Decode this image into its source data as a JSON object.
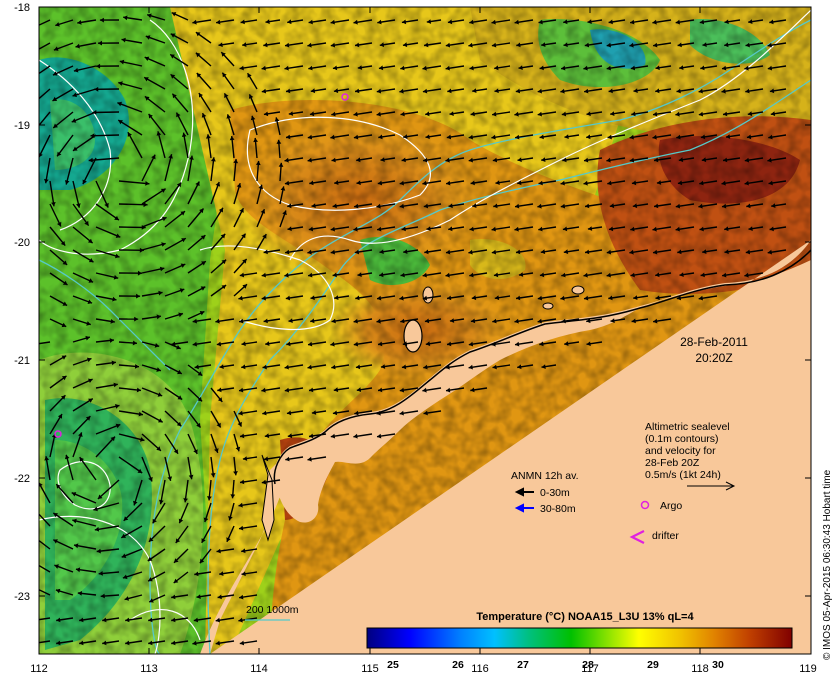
{
  "map": {
    "date": "28-Feb-2011",
    "time": "20:20Z",
    "credit": "© IMOS 05-Apr-2015 06:30:43 Hobart time",
    "lat_ticks": [
      "-18",
      "-19",
      "-20",
      "-21",
      "-22",
      "-23"
    ],
    "lon_ticks": [
      "112",
      "113",
      "114",
      "115",
      "116",
      "117",
      "118",
      "119"
    ],
    "altimetry_lines": [
      "Altimetric sealevel",
      "(0.1m contours)",
      "and velocity for",
      "28-Feb 20Z",
      "0.5m/s (1kt 24h)"
    ],
    "anmn": {
      "title": "ANMN 12h av.",
      "shallow": "0-30m",
      "deep": "30-80m"
    },
    "argo_label": "Argo",
    "drifter_label": "drifter",
    "bathymetry_label": "200  1000m",
    "colorbar": {
      "title": "Temperature (°C) NOAA15_L3U 13% qL=4",
      "ticks": [
        "25",
        "26",
        "27",
        "28",
        "29",
        "30"
      ]
    }
  },
  "colors": {
    "land": "#f8c89a",
    "bathy": "#56c9c9",
    "argo": "#e020e0",
    "anmn_deep": "#0000ff"
  }
}
